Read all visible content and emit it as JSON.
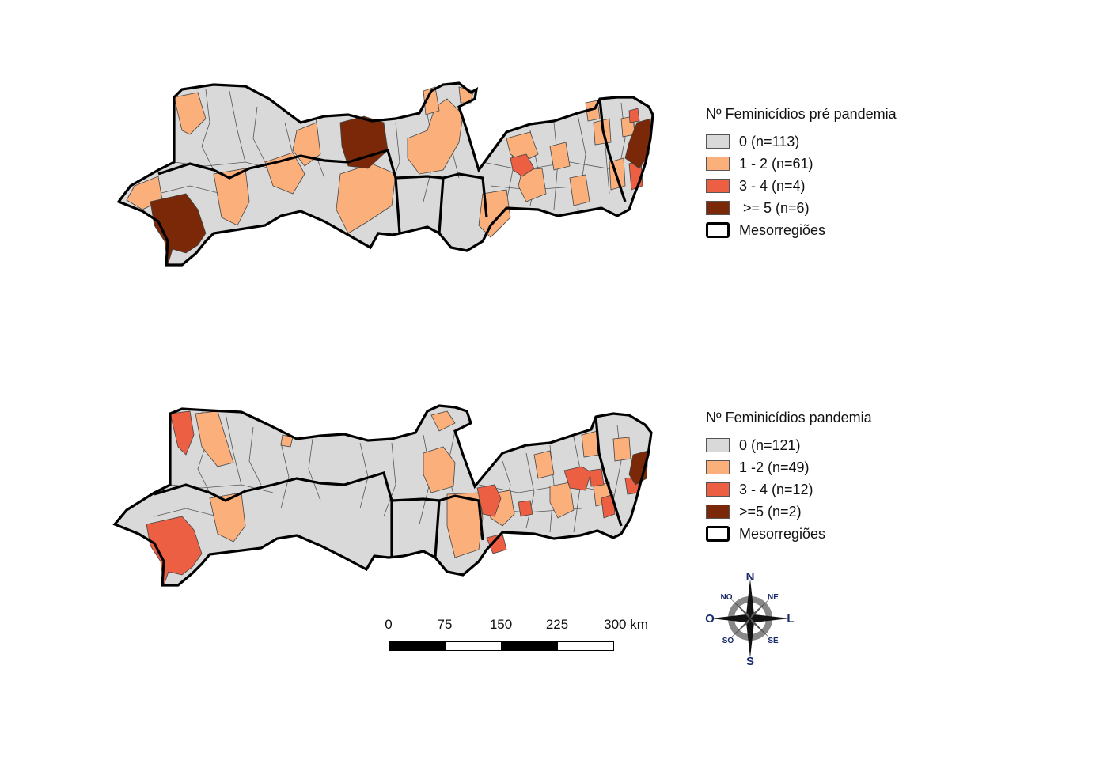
{
  "map_top": {
    "legend": {
      "title": "Nº Feminicídios pré pandemia",
      "items": [
        {
          "label": "0 (n=113)",
          "color": "#d9d9d9"
        },
        {
          "label": "1 - 2 (n=61)",
          "color": "#fbb07c"
        },
        {
          "label": "3 - 4 (n=4)",
          "color": "#ec5f43"
        },
        {
          "label": " >= 5 (n=6)",
          "color": "#7a2807"
        },
        {
          "label": "Mesorregiões",
          "color": "#000000"
        }
      ]
    }
  },
  "map_bottom": {
    "legend": {
      "title": "Nº Feminicídios pandemia",
      "items": [
        {
          "label": "0 (n=121)",
          "color": "#d9d9d9"
        },
        {
          "label": "1 -2 (n=49)",
          "color": "#fbb07c"
        },
        {
          "label": "3 - 4 (n=12)",
          "color": "#ec5f43"
        },
        {
          "label": ">=5 (n=2)",
          "color": "#7a2807"
        },
        {
          "label": "Mesorregiões",
          "color": "#000000"
        }
      ]
    }
  },
  "scale": {
    "ticks": [
      "0",
      "75",
      "150",
      "225",
      "300 km"
    ]
  },
  "compass": {
    "n": "N",
    "s": "S",
    "l": "L",
    "o": "O",
    "ne": "NE",
    "no": "NO",
    "se": "SE",
    "so": "SO",
    "color": "#1a2b6b"
  }
}
